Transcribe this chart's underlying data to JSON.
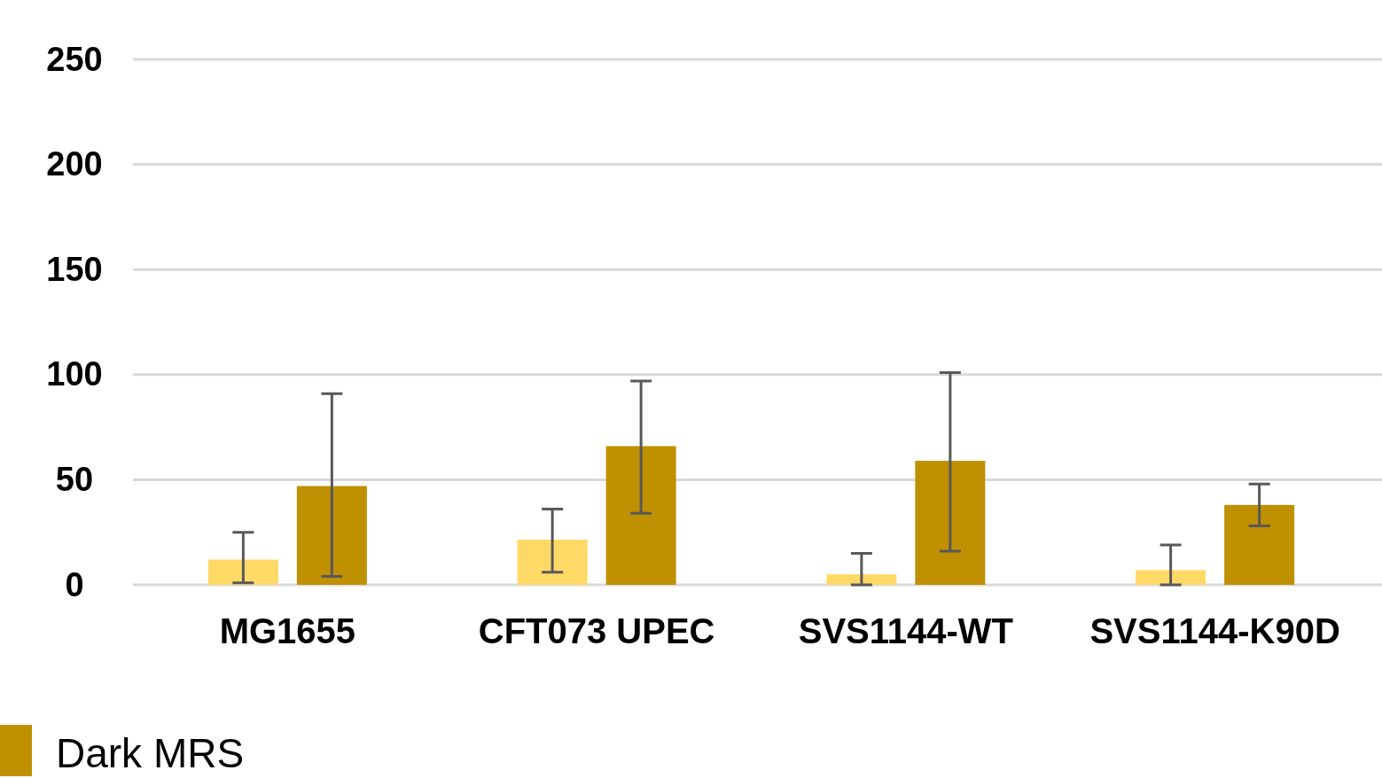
{
  "chart_data": {
    "type": "bar",
    "categories": [
      "MG1655",
      "CFT073 UPEC",
      "SVS1144-WT",
      "SVS1144-K90D"
    ],
    "series": [
      {
        "color": "#ffd966",
        "values": [
          12,
          21.5,
          5,
          7
        ],
        "errors": [
          [
            1,
            25
          ],
          [
            6,
            36
          ],
          [
            0,
            15
          ],
          [
            0,
            19
          ]
        ]
      },
      {
        "name": "Dark MRS",
        "color": "#bf9000",
        "values": [
          47,
          66,
          59,
          38
        ],
        "errors": [
          [
            4,
            91
          ],
          [
            34,
            97
          ],
          [
            16,
            101
          ],
          [
            28,
            48
          ]
        ]
      }
    ],
    "ylim": [
      0,
      250
    ],
    "yticks": [
      0,
      50,
      100,
      150,
      200,
      250
    ],
    "grid": "y",
    "legend": "bottom left"
  }
}
